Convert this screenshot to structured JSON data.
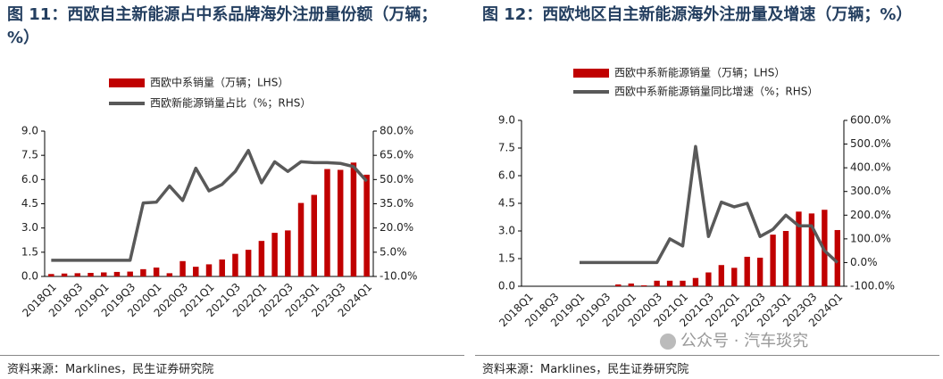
{
  "chart_data": [
    {
      "type": "bar",
      "title": "图 11：西欧自主新能源占中系品牌海外注册量份额（万辆；%）",
      "source": "资料来源：Marklines，民生证券研究院",
      "categories": [
        "2018Q1",
        null,
        "2018Q3",
        null,
        "2019Q1",
        null,
        "2019Q3",
        null,
        "2020Q1",
        null,
        "2020Q3",
        null,
        "2021Q1",
        null,
        "2021Q3",
        null,
        "2022Q1",
        null,
        "2022Q3",
        null,
        "2023Q1",
        null,
        "2023Q3",
        null,
        "2024Q1"
      ],
      "series": [
        {
          "name": "西欧中系销量（万辆；LHS）",
          "type": "bar",
          "color": "#c00000",
          "values": [
            0.15,
            0.18,
            0.2,
            0.22,
            0.25,
            0.28,
            0.3,
            0.45,
            0.55,
            0.2,
            0.95,
            0.6,
            0.75,
            1.05,
            1.4,
            1.65,
            2.2,
            2.7,
            2.85,
            4.55,
            5.05,
            6.65,
            6.6,
            7.05,
            6.3
          ]
        },
        {
          "name": "西欧新能源销量占比（%；RHS）",
          "type": "line",
          "axis": "y2",
          "color": "#595959",
          "values": [
            0,
            0,
            0,
            0,
            0,
            0,
            0,
            35.5,
            36,
            46,
            37,
            57,
            43,
            47,
            55,
            68,
            48,
            61,
            55,
            61,
            60.5,
            60.5,
            60,
            58,
            49
          ]
        }
      ],
      "ylim": [
        0,
        9
      ],
      "yticks": [
        {
          "value": 0,
          "label": "0.0"
        },
        {
          "value": 1.5,
          "label": "1.5"
        },
        {
          "value": 3,
          "label": "3.0"
        },
        {
          "value": 4.5,
          "label": "4.5"
        },
        {
          "value": 6,
          "label": "6.0"
        },
        {
          "value": 7.5,
          "label": "7.5"
        },
        {
          "value": 9,
          "label": "9.0"
        }
      ],
      "y2lim": [
        -10,
        80
      ],
      "y2ticks": [
        {
          "value": -10,
          "label": "-10.0%"
        },
        {
          "value": 5,
          "label": "5.0%"
        },
        {
          "value": 20,
          "label": "20.0%"
        },
        {
          "value": 35,
          "label": "35.0%"
        },
        {
          "value": 50,
          "label": "50.0%"
        },
        {
          "value": 65,
          "label": "65.0%"
        },
        {
          "value": 80,
          "label": "80.0%"
        }
      ]
    },
    {
      "type": "bar",
      "title": "图 12：西欧地区自主新能源海外注册量及增速（万辆；%）",
      "source": "资料来源：Marklines，民生证券研究院",
      "watermark": "公众号 · 汽车琰究",
      "categories": [
        "2018Q1",
        null,
        "2018Q3",
        null,
        "2019Q1",
        null,
        "2019Q3",
        null,
        "2020Q1",
        null,
        "2020Q3",
        null,
        "2021Q1",
        null,
        "2021Q3",
        null,
        "2022Q1",
        null,
        "2022Q3",
        null,
        "2023Q1",
        null,
        "2023Q3",
        null,
        "2024Q1"
      ],
      "series": [
        {
          "name": "西欧中系新能源销量（万辆；LHS）",
          "type": "bar",
          "color": "#c00000",
          "values": [
            0,
            0,
            0,
            0,
            0,
            0,
            0,
            0.1,
            0.15,
            0.05,
            0.3,
            0.3,
            0.3,
            0.45,
            0.75,
            1.15,
            1.0,
            1.6,
            1.55,
            2.8,
            3.0,
            4.05,
            3.95,
            4.15,
            3.05
          ]
        },
        {
          "name": "西欧中系新能源销量同比增速（%；RHS）",
          "type": "line",
          "axis": "y2",
          "color": "#595959",
          "values": [
            null,
            null,
            null,
            null,
            0,
            0,
            0,
            0,
            0,
            0,
            0,
            100,
            70,
            490,
            110,
            255,
            235,
            250,
            110,
            140,
            200,
            155,
            155,
            50,
            0
          ]
        }
      ],
      "ylim": [
        0,
        9
      ],
      "yticks": [
        {
          "value": 0,
          "label": "0.0"
        },
        {
          "value": 1.5,
          "label": "1.5"
        },
        {
          "value": 3,
          "label": "3.0"
        },
        {
          "value": 4.5,
          "label": "4.5"
        },
        {
          "value": 6,
          "label": "6.0"
        },
        {
          "value": 7.5,
          "label": "7.5"
        },
        {
          "value": 9,
          "label": "9.0"
        }
      ],
      "y2lim": [
        -100,
        600
      ],
      "y2ticks": [
        {
          "value": -100,
          "label": "-100.0%"
        },
        {
          "value": 0,
          "label": "0.0%"
        },
        {
          "value": 100,
          "label": "100.0%"
        },
        {
          "value": 200,
          "label": "200.0%"
        },
        {
          "value": 300,
          "label": "300.0%"
        },
        {
          "value": 400,
          "label": "400.0%"
        },
        {
          "value": 500,
          "label": "500.0%"
        },
        {
          "value": 600,
          "label": "600.0%"
        }
      ]
    }
  ]
}
